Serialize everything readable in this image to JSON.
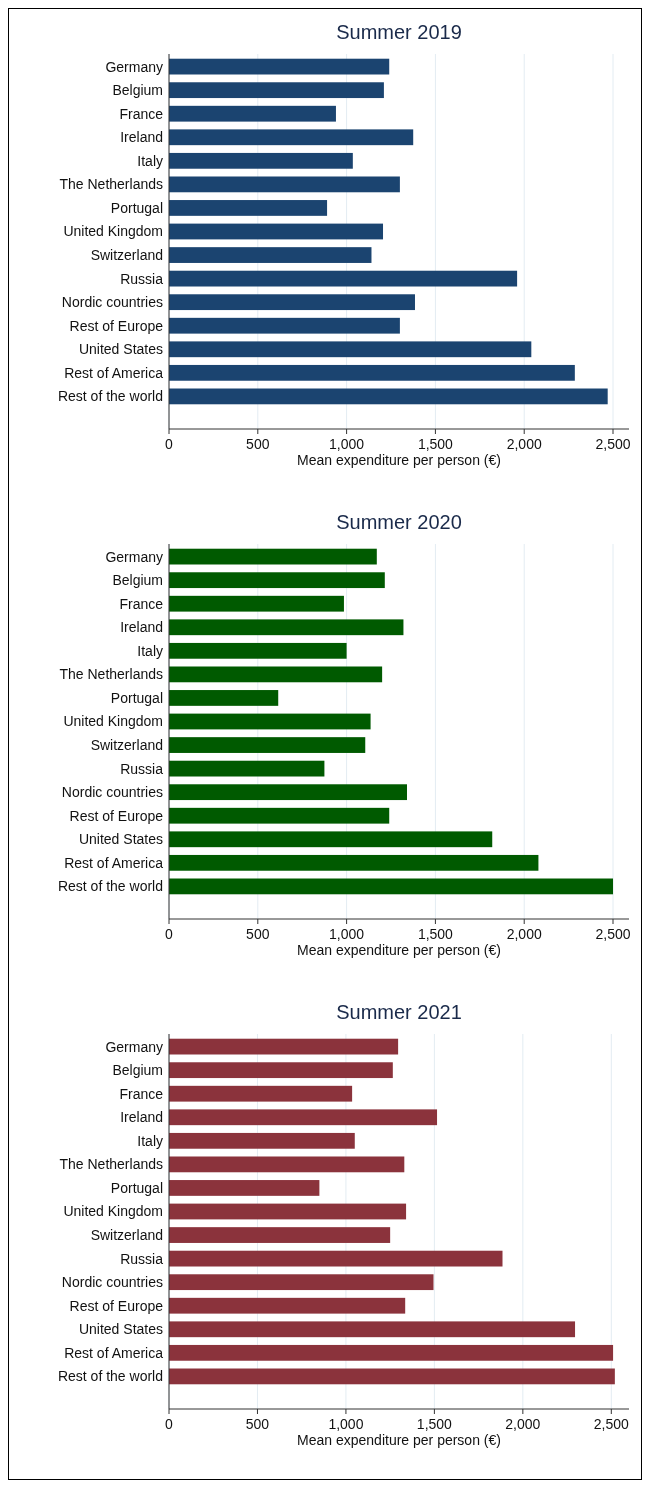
{
  "chart_data": [
    {
      "type": "bar",
      "orientation": "horizontal",
      "title": "Summer 2019",
      "xlabel": "Mean expenditure per person (€)",
      "categories": [
        "Germany",
        "Belgium",
        "France",
        "Ireland",
        "Italy",
        "The Netherlands",
        "Portugal",
        "United Kingdom",
        "Switzerland",
        "Russia",
        "Nordic countries",
        "Rest of Europe",
        "United States",
        "Rest of America",
        "Rest of the world"
      ],
      "values": [
        1240,
        1210,
        940,
        1375,
        1035,
        1300,
        890,
        1205,
        1140,
        1960,
        1385,
        1300,
        2040,
        2285,
        2470
      ],
      "color": "#1b4470",
      "xlim": [
        0,
        2590
      ],
      "xticks": [
        {
          "value": 0,
          "label": "0"
        },
        {
          "value": 500,
          "label": "500"
        },
        {
          "value": 1000,
          "label": "1,000"
        },
        {
          "value": 1500,
          "label": "1,500"
        },
        {
          "value": 2000,
          "label": "2,000"
        },
        {
          "value": 2500,
          "label": "2,500"
        }
      ],
      "grid": "x"
    },
    {
      "type": "bar",
      "orientation": "horizontal",
      "title": "Summer 2020",
      "xlabel": "Mean expenditure per person (€)",
      "categories": [
        "Germany",
        "Belgium",
        "France",
        "Ireland",
        "Italy",
        "The Netherlands",
        "Portugal",
        "United Kingdom",
        "Switzerland",
        "Russia",
        "Nordic countries",
        "Rest of Europe",
        "United States",
        "Rest of America",
        "Rest of the world"
      ],
      "values": [
        1170,
        1215,
        985,
        1320,
        1000,
        1200,
        615,
        1135,
        1105,
        875,
        1340,
        1240,
        1820,
        2080,
        2500
      ],
      "color": "#005a00",
      "xlim": [
        0,
        2590
      ],
      "xticks": [
        {
          "value": 0,
          "label": "0"
        },
        {
          "value": 500,
          "label": "500"
        },
        {
          "value": 1000,
          "label": "1,000"
        },
        {
          "value": 1500,
          "label": "1,500"
        },
        {
          "value": 2000,
          "label": "2,000"
        },
        {
          "value": 2500,
          "label": "2,500"
        }
      ],
      "grid": "x"
    },
    {
      "type": "bar",
      "orientation": "horizontal",
      "title": "Summer 2021",
      "xlabel": "Mean expenditure per person (€)",
      "categories": [
        "Germany",
        "Belgium",
        "France",
        "Ireland",
        "Italy",
        "The Netherlands",
        "Portugal",
        "United Kingdom",
        "Switzerland",
        "Russia",
        "Nordic countries",
        "Rest of Europe",
        "United States",
        "Rest of America",
        "Rest of the world"
      ],
      "values": [
        1295,
        1265,
        1035,
        1515,
        1050,
        1330,
        850,
        1340,
        1250,
        1885,
        1495,
        1335,
        2295,
        2510,
        2520
      ],
      "color": "#8b333c",
      "xlim": [
        0,
        2600
      ],
      "xticks": [
        {
          "value": 0,
          "label": "0"
        },
        {
          "value": 500,
          "label": "500"
        },
        {
          "value": 1000,
          "label": "1,000"
        },
        {
          "value": 1500,
          "label": "1,500"
        },
        {
          "value": 2000,
          "label": "2,000"
        },
        {
          "value": 2500,
          "label": "2,500"
        }
      ],
      "grid": "x"
    }
  ]
}
